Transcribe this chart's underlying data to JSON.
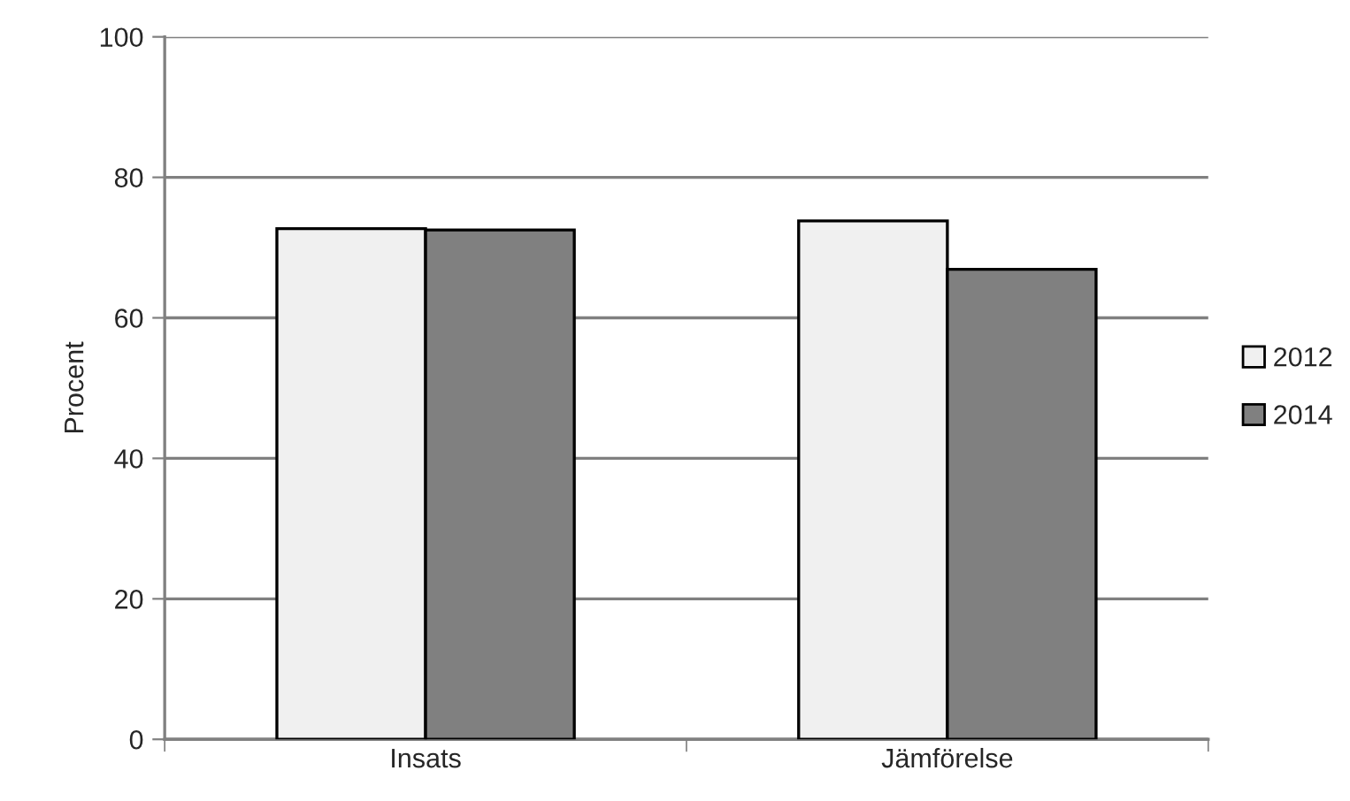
{
  "chart_data": {
    "type": "bar",
    "ylabel": "Procent",
    "categories": [
      "Insats",
      "Jämförelse"
    ],
    "series": [
      {
        "name": "2012",
        "color": "#f0f0f0",
        "values": [
          72.7,
          73.8
        ]
      },
      {
        "name": "2014",
        "color": "#808080",
        "values": [
          72.5,
          66.9
        ]
      }
    ],
    "ylim": [
      0,
      100
    ],
    "yticks": [
      0,
      20,
      40,
      60,
      80,
      100
    ],
    "grid": "y",
    "legend": "right"
  }
}
